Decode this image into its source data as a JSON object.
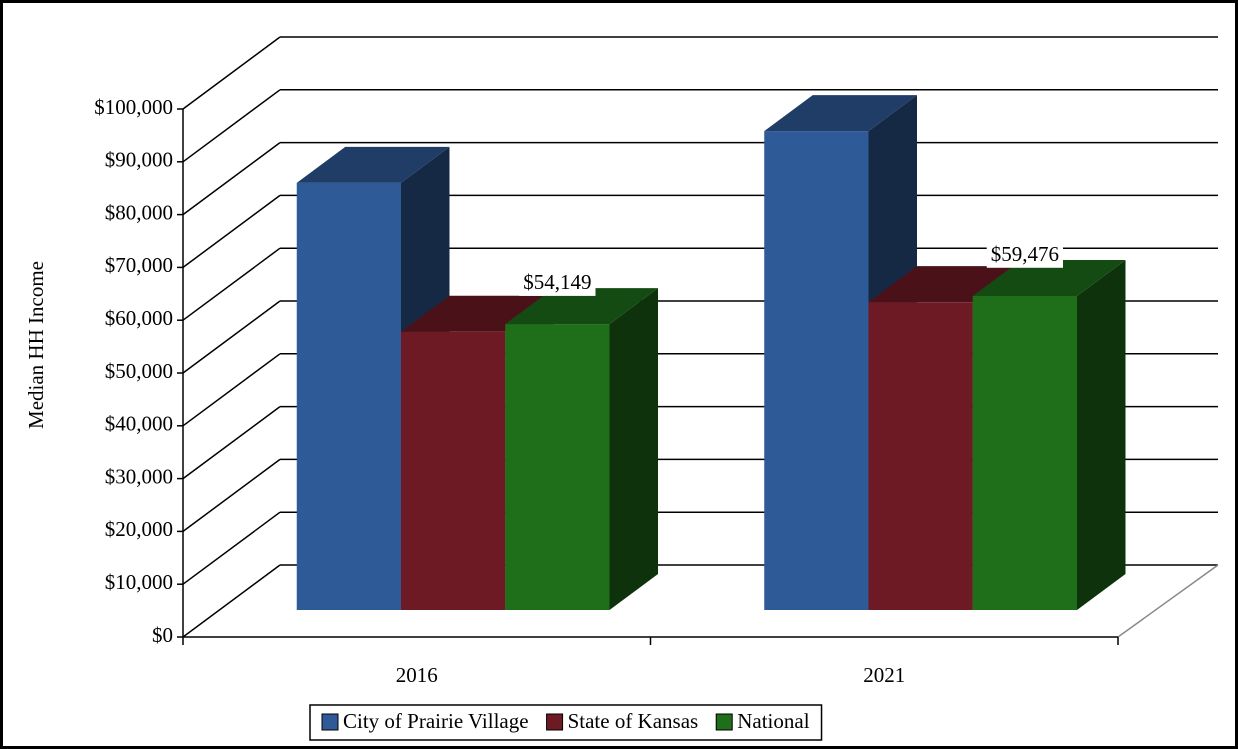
{
  "chart_data": {
    "type": "bar3d",
    "y_label": "Median HH Income",
    "categories": [
      "2016",
      "2021"
    ],
    "series": [
      {
        "name": "City of Prairie Village",
        "color": "#2e5a97",
        "values": [
          80900,
          90700
        ]
      },
      {
        "name": "State of Kansas",
        "color": "#6d1a24",
        "values": [
          52700,
          58300
        ]
      },
      {
        "name": "National",
        "color": "#1e6e1a",
        "values": [
          54149,
          59476
        ],
        "value_labels": [
          "$54,149",
          "$59,476"
        ]
      }
    ],
    "ylim": [
      0,
      100000
    ],
    "yticks": [
      {
        "value": 0,
        "label": "$0"
      },
      {
        "value": 10000,
        "label": "$10,000"
      },
      {
        "value": 20000,
        "label": "$20,000"
      },
      {
        "value": 30000,
        "label": "$30,000"
      },
      {
        "value": 40000,
        "label": "$40,000"
      },
      {
        "value": 50000,
        "label": "$50,000"
      },
      {
        "value": 60000,
        "label": "$60,000"
      },
      {
        "value": 70000,
        "label": "$70,000"
      },
      {
        "value": 80000,
        "label": "$80,000"
      },
      {
        "value": 90000,
        "label": "$90,000"
      },
      {
        "value": 100000,
        "label": "$100,000"
      }
    ],
    "grid": true,
    "legend": "bottom"
  }
}
